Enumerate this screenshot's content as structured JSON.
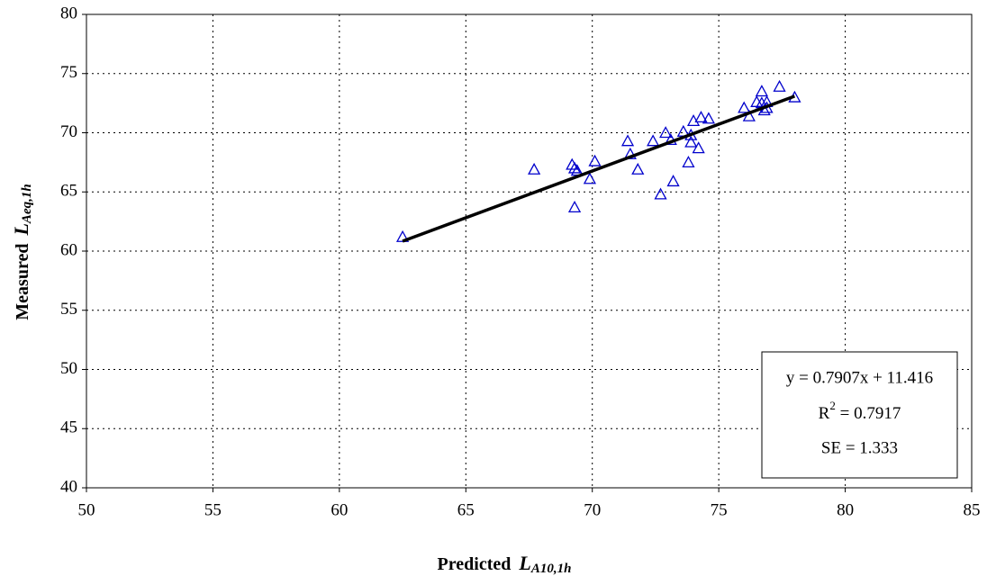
{
  "chart_data": {
    "type": "scatter",
    "x_label": {
      "text": "Predicted",
      "symbol": "L",
      "subscript": "A10,1h"
    },
    "y_label": {
      "text": "Measured",
      "symbol": "L",
      "subscript": "Aeq,1h"
    },
    "xlim": [
      50,
      85
    ],
    "xticks": [
      50,
      55,
      60,
      65,
      70,
      75,
      80,
      85
    ],
    "ylim": [
      40,
      80
    ],
    "yticks": [
      40,
      45,
      50,
      55,
      60,
      65,
      70,
      75,
      80
    ],
    "grid": true,
    "series": [
      {
        "color": "#0000cc",
        "x": [
          62.5,
          67.7,
          69.2,
          69.3,
          69.4,
          70.1,
          69.9,
          69.3,
          71.4,
          71.5,
          71.8,
          72.4,
          72.9,
          73.1,
          73.6,
          73.8,
          72.7,
          73.2,
          73.9,
          73.9,
          74.0,
          74.2,
          74.3,
          74.6,
          76.0,
          76.2,
          76.5,
          76.7,
          76.7,
          76.8,
          76.9,
          76.9,
          77.4,
          78.0
        ],
        "values": [
          61.2,
          66.9,
          67.3,
          67.0,
          66.8,
          67.6,
          66.1,
          63.7,
          69.3,
          68.2,
          66.9,
          69.3,
          70.0,
          69.4,
          70.1,
          67.5,
          64.8,
          65.9,
          69.2,
          69.8,
          71.0,
          68.7,
          71.3,
          71.2,
          72.1,
          71.4,
          72.6,
          73.5,
          72.5,
          71.9,
          72.1,
          72.6,
          73.9,
          73.0
        ]
      }
    ],
    "trendline": {
      "color": "#000000",
      "x": [
        62.5,
        78.0
      ],
      "values": [
        60.84,
        73.09
      ]
    },
    "legend_position": "lower right",
    "stats": {
      "equation": "y = 0.7907x + 11.416",
      "r2_base": "R",
      "r2_exp": "2",
      "r2_rest": " = 0.7917",
      "se": "SE = 1.333"
    }
  }
}
